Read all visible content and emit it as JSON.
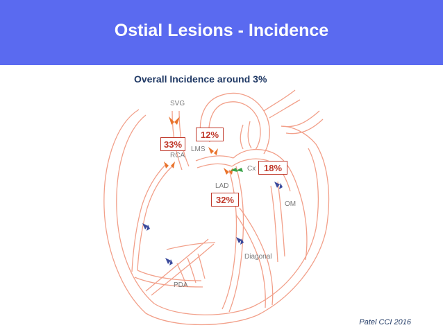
{
  "header": {
    "title": "Ostial Lesions - Incidence",
    "color": "#5a6af0"
  },
  "subtitle": "Overall Incidence around 3%",
  "diagram": {
    "labels": {
      "svg": "SVG",
      "rca": "RCA",
      "lms": "LMS",
      "cx": "Cx",
      "lad": "LAD",
      "om": "OM",
      "diagonal": "Diagonal",
      "pda": "PDA"
    },
    "percentages": {
      "rca": "33%",
      "lms": "12%",
      "cx": "18%",
      "lad": "32%"
    },
    "colors": {
      "vessel": "#f2a08a",
      "orange_marker": "#e9732c",
      "green_marker": "#3aa34a",
      "blue_marker": "#3b4a9c",
      "label_box": "#c0392b"
    }
  },
  "citation": "Patel  CCI 2016"
}
